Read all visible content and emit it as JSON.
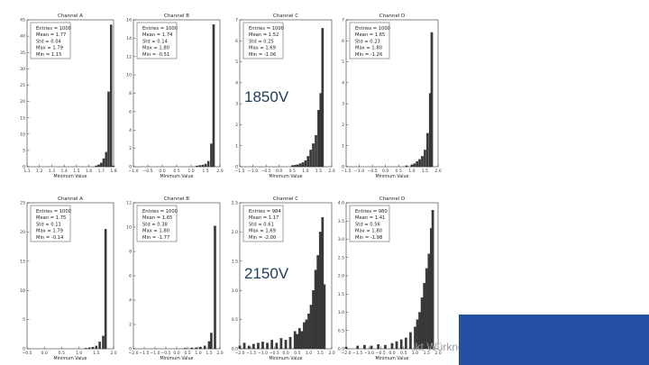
{
  "chart_data": [
    {
      "type": "bar",
      "title": "Channel A",
      "xlabel": "Minimum Value",
      "ylabel": "",
      "xlim": [
        1.1,
        1.8
      ],
      "ylim": [
        0,
        45
      ],
      "xticks": [
        1.1,
        1.2,
        1.3,
        1.4,
        1.5,
        1.6,
        1.7,
        1.8
      ],
      "yticks": [
        0,
        5,
        10,
        15,
        20,
        25,
        30,
        35,
        40,
        45
      ],
      "stats": [
        "Entries = 1000",
        "Mean = 1.77",
        "Std = 0.04",
        "Max = 1.79",
        "Min = 1.15"
      ],
      "bins": [
        [
          1.66,
          0.3
        ],
        [
          1.68,
          0.6
        ],
        [
          1.7,
          1.2
        ],
        [
          1.72,
          2.5
        ],
        [
          1.74,
          4.5
        ],
        [
          1.76,
          23
        ],
        [
          1.78,
          43.5
        ],
        [
          1.8,
          0.2
        ]
      ]
    },
    {
      "type": "bar",
      "title": "Channel B",
      "xlabel": "Minimum Value",
      "ylabel": "",
      "xlim": [
        -1.0,
        2.0
      ],
      "ylim": [
        0,
        16
      ],
      "xticks": [
        -1.0,
        -0.5,
        0.0,
        0.5,
        1.0,
        1.5,
        2.0
      ],
      "yticks": [
        0,
        2,
        4,
        6,
        8,
        10,
        12,
        14,
        16
      ],
      "stats": [
        "Entries = 1000",
        "Mean = 1.74",
        "Std = 0.14",
        "Max = 1.80",
        "Min = -0.51"
      ],
      "bins": [
        [
          1.2,
          0.1
        ],
        [
          1.3,
          0.15
        ],
        [
          1.4,
          0.2
        ],
        [
          1.5,
          0.3
        ],
        [
          1.6,
          0.6
        ],
        [
          1.7,
          2.5
        ],
        [
          1.78,
          15.5
        ]
      ]
    },
    {
      "type": "bar",
      "title": "Channel C",
      "xlabel": "Minimum Value",
      "ylabel": "",
      "xlim": [
        -1.5,
        2.0
      ],
      "ylim": [
        0,
        7
      ],
      "xticks": [
        -1.5,
        -1.0,
        -0.5,
        0.0,
        0.5,
        1.0,
        1.5,
        2.0
      ],
      "yticks": [
        0,
        1,
        2,
        3,
        4,
        5,
        6,
        7
      ],
      "stats": [
        "Entries = 1000",
        "Mean = 1.52",
        "Std = 0.25",
        "Max = 1.69",
        "Min = -1.06"
      ],
      "bins": [
        [
          0.5,
          0.05
        ],
        [
          0.6,
          0.08
        ],
        [
          0.7,
          0.1
        ],
        [
          0.8,
          0.15
        ],
        [
          0.9,
          0.2
        ],
        [
          1.0,
          0.3
        ],
        [
          1.1,
          0.5
        ],
        [
          1.2,
          0.8
        ],
        [
          1.3,
          1.1
        ],
        [
          1.4,
          1.5
        ],
        [
          1.5,
          2.7
        ],
        [
          1.58,
          3.5
        ],
        [
          1.65,
          6.6
        ]
      ]
    },
    {
      "type": "bar",
      "title": "Channel D",
      "xlabel": "Minimum Value",
      "ylabel": "",
      "xlim": [
        -1.5,
        2.0
      ],
      "ylim": [
        0,
        7
      ],
      "xticks": [
        -1.5,
        -1.0,
        -0.5,
        0.0,
        0.5,
        1.0,
        1.5,
        2.0
      ],
      "yticks": [
        0,
        1,
        2,
        3,
        4,
        5,
        6,
        7
      ],
      "stats": [
        "Entries = 1000",
        "Mean = 1.65",
        "Std = 0.23",
        "Max = 1.80",
        "Min = -1.26"
      ],
      "bins": [
        [
          0.8,
          0.05
        ],
        [
          1.0,
          0.1
        ],
        [
          1.1,
          0.15
        ],
        [
          1.2,
          0.25
        ],
        [
          1.3,
          0.35
        ],
        [
          1.4,
          0.5
        ],
        [
          1.5,
          0.8
        ],
        [
          1.6,
          1.6
        ],
        [
          1.7,
          3.5
        ],
        [
          1.76,
          6.4
        ]
      ]
    },
    {
      "type": "bar",
      "title": "Channel A",
      "xlabel": "Minimum Value",
      "ylabel": "",
      "xlim": [
        -0.5,
        2.0
      ],
      "ylim": [
        0,
        25
      ],
      "xticks": [
        -0.5,
        0.0,
        0.5,
        1.0,
        1.5,
        2.0
      ],
      "yticks": [
        0,
        5,
        10,
        15,
        20,
        25
      ],
      "stats": [
        "Entries = 1000",
        "Mean = 1.75",
        "Std = 0.11",
        "Max = 1.79",
        "Min = -0.14"
      ],
      "bins": [
        [
          1.2,
          0.1
        ],
        [
          1.3,
          0.2
        ],
        [
          1.4,
          0.3
        ],
        [
          1.5,
          0.5
        ],
        [
          1.6,
          1.2
        ],
        [
          1.7,
          2.2
        ],
        [
          1.77,
          20.5
        ]
      ]
    },
    {
      "type": "bar",
      "title": "Channel B",
      "xlabel": "Minimum Value",
      "ylabel": "",
      "xlim": [
        -2.0,
        2.0
      ],
      "ylim": [
        0,
        12
      ],
      "xticks": [
        -2.0,
        -1.5,
        -1.0,
        -0.5,
        0.0,
        0.5,
        1.0,
        1.5,
        2.0
      ],
      "yticks": [
        0,
        2,
        4,
        6,
        8,
        10,
        12
      ],
      "stats": [
        "Entries = 1000",
        "Mean = 1.65",
        "Std = 0.38",
        "Max = 1.80",
        "Min = -1.77"
      ],
      "bins": [
        [
          0.4,
          0.05
        ],
        [
          0.7,
          0.08
        ],
        [
          0.9,
          0.1
        ],
        [
          1.1,
          0.15
        ],
        [
          1.3,
          0.25
        ],
        [
          1.5,
          0.6
        ],
        [
          1.6,
          1.3
        ],
        [
          1.77,
          10.1
        ]
      ]
    },
    {
      "type": "bar",
      "title": "Channel C",
      "xlabel": "Minimum Value",
      "ylabel": "",
      "xlim": [
        -2.0,
        2.0
      ],
      "ylim": [
        0,
        2.5
      ],
      "xticks": [
        -2.0,
        -1.5,
        -1.0,
        -0.5,
        0.0,
        0.5,
        1.0,
        1.5,
        2.0
      ],
      "yticks": [
        0.0,
        0.5,
        1.0,
        1.5,
        2.0,
        2.5
      ],
      "stats": [
        "Entries = 984",
        "Mean = 1.17",
        "Std = 0.61",
        "Max = 1.69",
        "Min = -2.00"
      ],
      "bins": [
        [
          -2.0,
          0.05
        ],
        [
          -1.8,
          0.1
        ],
        [
          -1.6,
          0.05
        ],
        [
          -1.4,
          0.08
        ],
        [
          -1.2,
          0.1
        ],
        [
          -1.0,
          0.12
        ],
        [
          -0.8,
          0.1
        ],
        [
          -0.6,
          0.15
        ],
        [
          -0.4,
          0.1
        ],
        [
          -0.2,
          0.18
        ],
        [
          0.0,
          0.15
        ],
        [
          0.2,
          0.2
        ],
        [
          0.4,
          0.3
        ],
        [
          0.5,
          0.25
        ],
        [
          0.6,
          0.35
        ],
        [
          0.7,
          0.3
        ],
        [
          0.8,
          0.45
        ],
        [
          0.9,
          0.5
        ],
        [
          1.0,
          0.6
        ],
        [
          1.1,
          0.75
        ],
        [
          1.2,
          1.0
        ],
        [
          1.3,
          1.35
        ],
        [
          1.4,
          1.6
        ],
        [
          1.5,
          2.0
        ],
        [
          1.6,
          2.25
        ],
        [
          1.68,
          1.1
        ]
      ]
    },
    {
      "type": "bar",
      "title": "Channel D",
      "xlabel": "Minimum Value",
      "ylabel": "",
      "xlim": [
        -2.0,
        2.0
      ],
      "ylim": [
        0,
        4.0
      ],
      "xticks": [
        -2.0,
        -1.5,
        -1.0,
        -0.5,
        0.0,
        0.5,
        1.0,
        1.5,
        2.0
      ],
      "yticks": [
        0.0,
        0.5,
        1.0,
        1.5,
        2.0,
        2.5,
        3.0,
        3.5,
        4.0
      ],
      "stats": [
        "Entries = 980",
        "Mean = 1.41",
        "Std = 0.56",
        "Max = 1.80",
        "Min = -1.98"
      ],
      "bins": [
        [
          -2.0,
          0.05
        ],
        [
          -1.5,
          0.08
        ],
        [
          -1.2,
          0.1
        ],
        [
          -0.9,
          0.08
        ],
        [
          -0.6,
          0.12
        ],
        [
          -0.3,
          0.1
        ],
        [
          0.0,
          0.15
        ],
        [
          0.2,
          0.2
        ],
        [
          0.4,
          0.25
        ],
        [
          0.6,
          0.3
        ],
        [
          0.8,
          0.45
        ],
        [
          1.0,
          0.6
        ],
        [
          1.1,
          0.8
        ],
        [
          1.2,
          1.0
        ],
        [
          1.3,
          1.4
        ],
        [
          1.4,
          1.8
        ],
        [
          1.5,
          2.2
        ],
        [
          1.6,
          2.6
        ],
        [
          1.7,
          3.3
        ],
        [
          1.77,
          3.8
        ]
      ]
    }
  ],
  "overlay": {
    "label_top": "1850V",
    "label_bottom": "2150V",
    "footer_author": "ikt Würkner"
  },
  "colors": {
    "bar": "#3a3a3a",
    "footer": "#2451a6",
    "label": "#1f3d63"
  }
}
